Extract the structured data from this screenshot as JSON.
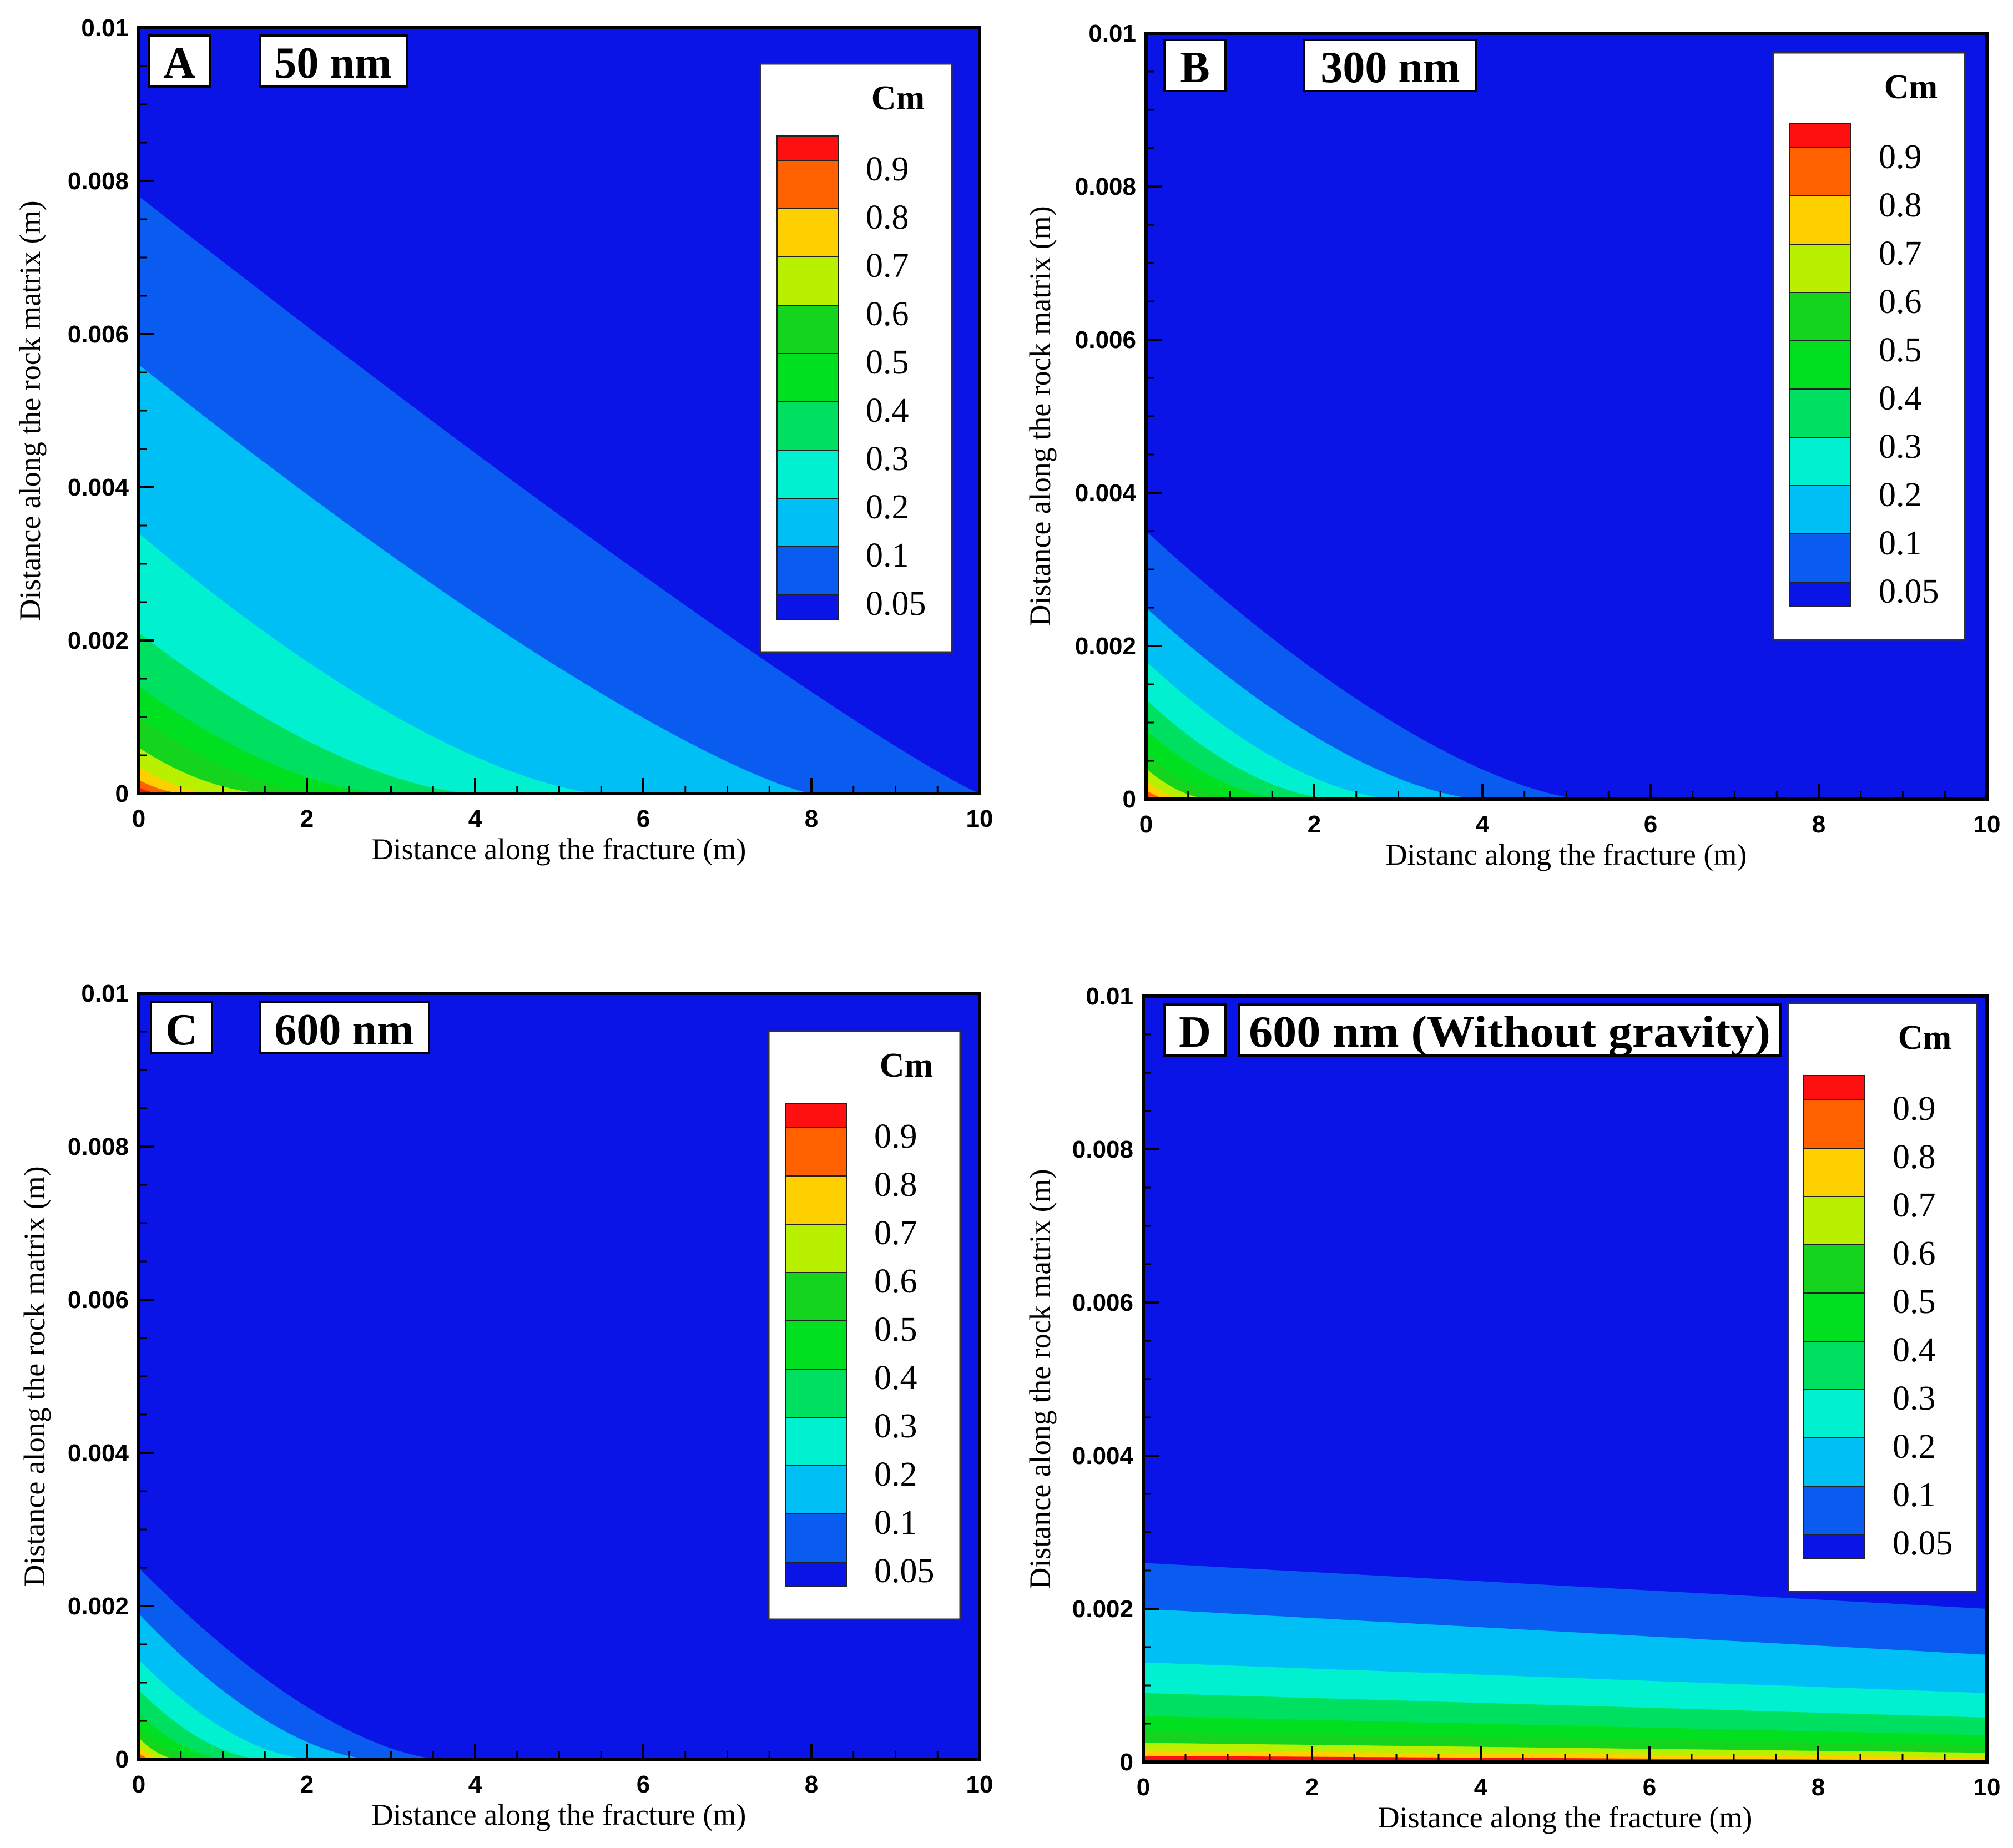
{
  "chart_data": [
    {
      "type": "contour",
      "panel_label": "A",
      "title": "50 nm",
      "xlabel": "Distance along the fracture (m)",
      "ylabel": "Distance along the rock matrix (m)",
      "xlim": [
        0,
        10
      ],
      "ylim": [
        0,
        0.01
      ],
      "xticks": [
        "0",
        "2",
        "4",
        "6",
        "8",
        "10"
      ],
      "yticks": [
        "0",
        "0.002",
        "0.004",
        "0.006",
        "0.008",
        "0.01"
      ],
      "contours": [
        {
          "level": 0.05,
          "y_at_x0": 0.0078,
          "front_x": 10.0,
          "shape": 1.1
        },
        {
          "level": 0.1,
          "y_at_x0": 0.0056,
          "front_x": 8.0,
          "shape": 1.25
        },
        {
          "level": 0.2,
          "y_at_x0": 0.0034,
          "front_x": 5.5,
          "shape": 1.5
        },
        {
          "level": 0.3,
          "y_at_x0": 0.0021,
          "front_x": 4.0,
          "shape": 1.6
        },
        {
          "level": 0.4,
          "y_at_x0": 0.0014,
          "front_x": 3.0,
          "shape": 1.7
        },
        {
          "level": 0.5,
          "y_at_x0": 0.001,
          "front_x": 2.3,
          "shape": 1.8
        },
        {
          "level": 0.6,
          "y_at_x0": 0.0006,
          "front_x": 1.6,
          "shape": 1.9
        },
        {
          "level": 0.7,
          "y_at_x0": 0.00035,
          "front_x": 1.0,
          "shape": 2.0
        },
        {
          "level": 0.8,
          "y_at_x0": 0.00018,
          "front_x": 0.6,
          "shape": 2.0
        },
        {
          "level": 0.9,
          "y_at_x0": 8e-05,
          "front_x": 0.3,
          "shape": 2.0
        }
      ]
    },
    {
      "type": "contour",
      "panel_label": "B",
      "title": "300 nm",
      "xlabel": "Distanc along the fracture (m)",
      "ylabel": "Distance along the rock matrix (m)",
      "xlim": [
        0,
        10
      ],
      "ylim": [
        0,
        0.01
      ],
      "xticks": [
        "0",
        "2",
        "4",
        "6",
        "8",
        "10"
      ],
      "yticks": [
        "0",
        "0.002",
        "0.004",
        "0.006",
        "0.008",
        "0.01"
      ],
      "contours": [
        {
          "level": 0.05,
          "y_at_x0": 0.0035,
          "front_x": 5.2,
          "shape": 1.5
        },
        {
          "level": 0.1,
          "y_at_x0": 0.0025,
          "front_x": 4.0,
          "shape": 1.6
        },
        {
          "level": 0.2,
          "y_at_x0": 0.0018,
          "front_x": 3.0,
          "shape": 1.7
        },
        {
          "level": 0.3,
          "y_at_x0": 0.0013,
          "front_x": 2.3,
          "shape": 1.8
        },
        {
          "level": 0.4,
          "y_at_x0": 0.0009,
          "front_x": 1.7,
          "shape": 1.8
        },
        {
          "level": 0.5,
          "y_at_x0": 0.0006,
          "front_x": 1.2,
          "shape": 1.9
        },
        {
          "level": 0.6,
          "y_at_x0": 0.0004,
          "front_x": 0.8,
          "shape": 1.9
        },
        {
          "level": 0.7,
          "y_at_x0": 0.00025,
          "front_x": 0.5,
          "shape": 2.0
        },
        {
          "level": 0.8,
          "y_at_x0": 0.00012,
          "front_x": 0.3,
          "shape": 2.0
        },
        {
          "level": 0.9,
          "y_at_x0": 5e-05,
          "front_x": 0.15,
          "shape": 2.0
        }
      ]
    },
    {
      "type": "contour",
      "panel_label": "C",
      "title": "600 nm",
      "xlabel": "Distance along the fracture (m)",
      "ylabel": "Distance along the rock matrix (m)",
      "xlim": [
        0,
        10
      ],
      "ylim": [
        0,
        0.01
      ],
      "xticks": [
        "0",
        "2",
        "4",
        "6",
        "8",
        "10"
      ],
      "yticks": [
        "0",
        "0.002",
        "0.004",
        "0.006",
        "0.008",
        "0.01"
      ],
      "contours": [
        {
          "level": 0.05,
          "y_at_x0": 0.0025,
          "front_x": 3.6,
          "shape": 1.6
        },
        {
          "level": 0.1,
          "y_at_x0": 0.0019,
          "front_x": 2.8,
          "shape": 1.7
        },
        {
          "level": 0.2,
          "y_at_x0": 0.0013,
          "front_x": 2.1,
          "shape": 1.8
        },
        {
          "level": 0.3,
          "y_at_x0": 0.0009,
          "front_x": 1.5,
          "shape": 1.8
        },
        {
          "level": 0.4,
          "y_at_x0": 0.0006,
          "front_x": 1.1,
          "shape": 1.9
        },
        {
          "level": 0.5,
          "y_at_x0": 0.0004,
          "front_x": 0.8,
          "shape": 1.9
        },
        {
          "level": 0.6,
          "y_at_x0": 0.00028,
          "front_x": 0.5,
          "shape": 2.0
        },
        {
          "level": 0.7,
          "y_at_x0": 0.00016,
          "front_x": 0.3,
          "shape": 2.0
        },
        {
          "level": 0.8,
          "y_at_x0": 8e-05,
          "front_x": 0.18,
          "shape": 2.0
        },
        {
          "level": 0.9,
          "y_at_x0": 3e-05,
          "front_x": 0.1,
          "shape": 2.0
        }
      ]
    },
    {
      "type": "contour",
      "panel_label": "D",
      "title": "600 nm (Without gravity)",
      "xlabel": "Distance along the fracture (m)",
      "ylabel": "Distance along the rock matrix (m)",
      "xlim": [
        0,
        10
      ],
      "ylim": [
        0,
        0.01
      ],
      "xticks": [
        "0",
        "2",
        "4",
        "6",
        "8",
        "10"
      ],
      "yticks": [
        "0",
        "0.002",
        "0.004",
        "0.006",
        "0.008",
        "0.01"
      ],
      "contours": [
        {
          "level": 0.05,
          "y_at_x0": 0.0026,
          "y_at_x10": 0.002
        },
        {
          "level": 0.1,
          "y_at_x0": 0.002,
          "y_at_x10": 0.0014
        },
        {
          "level": 0.2,
          "y_at_x0": 0.0013,
          "y_at_x10": 0.0009
        },
        {
          "level": 0.3,
          "y_at_x0": 0.0009,
          "y_at_x10": 0.00058
        },
        {
          "level": 0.4,
          "y_at_x0": 0.0006,
          "y_at_x10": 0.00035
        },
        {
          "level": 0.5,
          "y_at_x0": 0.0004,
          "y_at_x10": 0.00022
        },
        {
          "level": 0.6,
          "y_at_x0": 0.00025,
          "y_at_x10": 0.00012
        },
        {
          "level": 0.7,
          "y_at_x0": 0.00015,
          "y_at_x10": 6e-05
        },
        {
          "level": 0.8,
          "y_at_x0": 8e-05,
          "y_at_x10": 2e-05
        }
      ]
    }
  ],
  "legend": {
    "title": "Cm",
    "labels": [
      "0.9",
      "0.8",
      "0.7",
      "0.6",
      "0.5",
      "0.4",
      "0.3",
      "0.2",
      "0.1",
      "0.05"
    ]
  },
  "colors": {
    "background_level": "#0a14e6",
    "levels": {
      "0.05": "#0a14e6",
      "0.1": "#0a5cf0",
      "0.2": "#00bff5",
      "0.3": "#00f0d0",
      "0.4": "#00e060",
      "0.5": "#00e020",
      "0.6": "#14d41e",
      "0.7": "#b8f000",
      "0.8": "#ffd000",
      "0.9": "#ff6000",
      "1.0": "#ff1010"
    },
    "legend_swatches": [
      "#ff1010",
      "#ff6000",
      "#ffd000",
      "#b8f000",
      "#14d41e",
      "#00e020",
      "#00e060",
      "#00f0d0",
      "#00bff5",
      "#0a5cf0",
      "#0a14e6"
    ]
  }
}
